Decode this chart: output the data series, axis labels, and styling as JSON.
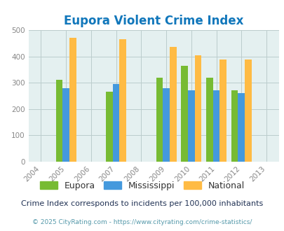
{
  "title": "Eupora Violent Crime Index",
  "years": [
    2005,
    2007,
    2009,
    2010,
    2011,
    2012
  ],
  "eupora": [
    310,
    265,
    320,
    365,
    320,
    272
  ],
  "mississippi": [
    280,
    295,
    280,
    270,
    270,
    260
  ],
  "national": [
    470,
    465,
    435,
    405,
    387,
    387
  ],
  "eupora_color": "#77bb33",
  "mississippi_color": "#4499dd",
  "national_color": "#ffbb44",
  "bg_color": "#e4f0f0",
  "title_color": "#1177bb",
  "xlim": [
    2003.5,
    2013.5
  ],
  "ylim": [
    0,
    500
  ],
  "yticks": [
    0,
    100,
    200,
    300,
    400,
    500
  ],
  "xticks": [
    2004,
    2005,
    2006,
    2007,
    2008,
    2009,
    2010,
    2011,
    2012,
    2013
  ],
  "legend_labels": [
    "Eupora",
    "Mississippi",
    "National"
  ],
  "footnote1": "Crime Index corresponds to incidents per 100,000 inhabitants",
  "footnote2": "© 2025 CityRating.com - https://www.cityrating.com/crime-statistics/",
  "bar_width": 0.27,
  "grid_color": "#bbcccc"
}
